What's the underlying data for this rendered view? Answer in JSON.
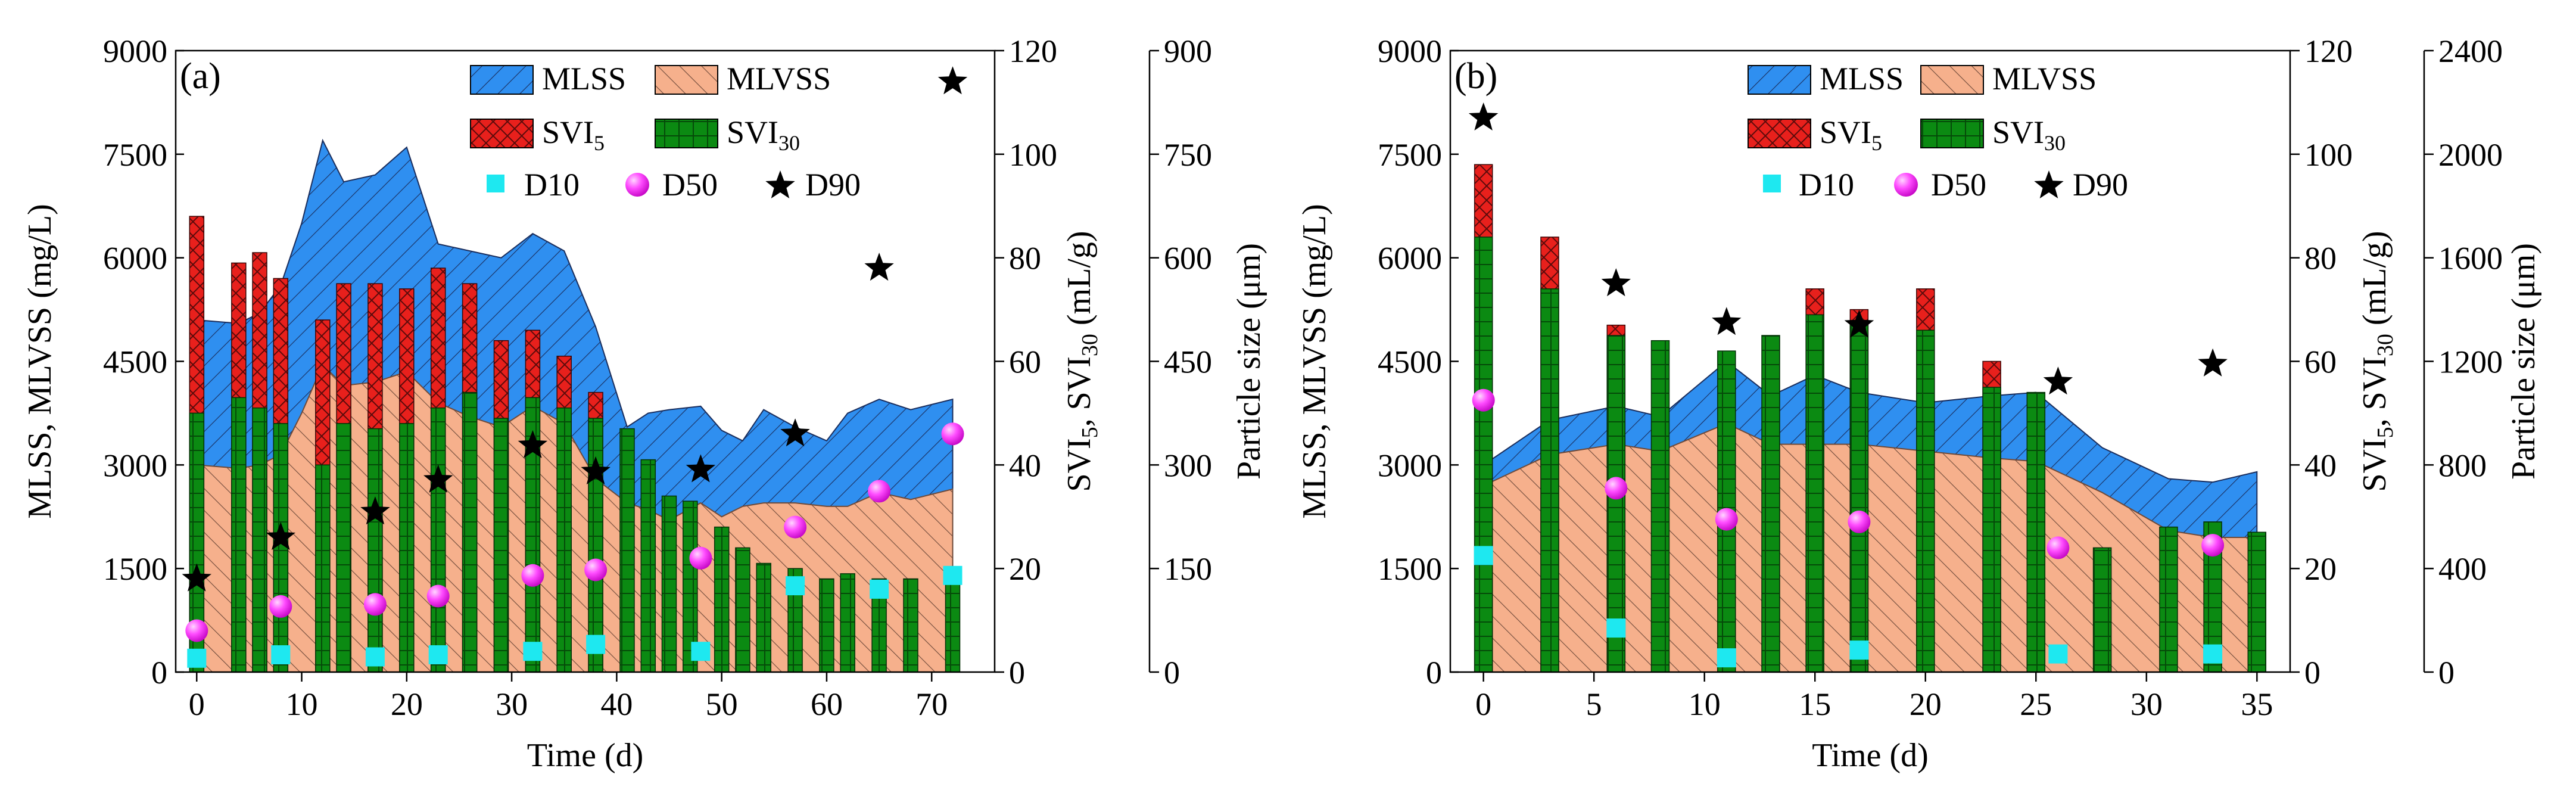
{
  "chart_data": [
    {
      "panel_label": "(a)",
      "type": "bar+area+scatter",
      "xlabel": "Time (d)",
      "x_ticks": [
        "0",
        "10",
        "20",
        "30",
        "40",
        "50",
        "60",
        "70"
      ],
      "xlim": [
        -2,
        76
      ],
      "ylabel_left": "MLSS, MLVSS (mg/L)",
      "ylim_left": [
        0,
        9000
      ],
      "y_ticks_left": [
        "0",
        "1500",
        "3000",
        "4500",
        "6000",
        "7500",
        "9000"
      ],
      "ylabel_right1": "SVI5, SVI30 (mL/g)",
      "ylim_right1": [
        0,
        120
      ],
      "y_ticks_right1": [
        "0",
        "20",
        "40",
        "60",
        "80",
        "100",
        "120"
      ],
      "ylabel_right2": "Particle size (μm)",
      "ylim_right2": [
        0,
        900
      ],
      "y_ticks_right2": [
        "0",
        "150",
        "300",
        "450",
        "600",
        "750",
        "900"
      ],
      "legend": {
        "mlss": "MLSS",
        "mlvss": "MLVSS",
        "svi5": "SVI",
        "svi5_sub": "5",
        "svi30": "SVI",
        "svi30_sub": "30",
        "d10": "D10",
        "d50": "D50",
        "d90": "D90"
      },
      "mlss": {
        "x": [
          0,
          4,
          6,
          8,
          10,
          12,
          14,
          17,
          20,
          23,
          26,
          29,
          32,
          35,
          38,
          41,
          43,
          45,
          48,
          50,
          52,
          54,
          57,
          60,
          62,
          65,
          68,
          72
        ],
        "y": [
          5100,
          5050,
          5200,
          5600,
          6500,
          7700,
          7100,
          7200,
          7600,
          6200,
          6100,
          6000,
          6350,
          6100,
          5000,
          3550,
          3750,
          3800,
          3850,
          3500,
          3350,
          3800,
          3550,
          3350,
          3750,
          3950,
          3800,
          3950
        ]
      },
      "mlvss": {
        "x": [
          0,
          4,
          6,
          8,
          10,
          12,
          14,
          17,
          20,
          23,
          26,
          29,
          32,
          35,
          38,
          41,
          43,
          45,
          48,
          50,
          52,
          54,
          57,
          60,
          62,
          65,
          68,
          72
        ],
        "y": [
          3000,
          2950,
          3000,
          3150,
          3750,
          4450,
          4150,
          4200,
          4350,
          3900,
          3700,
          3550,
          3850,
          3600,
          2800,
          2450,
          2350,
          2200,
          2450,
          2250,
          2400,
          2450,
          2450,
          2400,
          2400,
          2600,
          2500,
          2650
        ]
      },
      "svi30": {
        "x": [
          0,
          4,
          6,
          8,
          12,
          14,
          17,
          20,
          23,
          26,
          29,
          32,
          35,
          38,
          41,
          43,
          45,
          47,
          50,
          52,
          54,
          57,
          60,
          62,
          65,
          68,
          72
        ],
        "y": [
          50,
          53,
          51,
          48,
          40,
          48,
          47,
          48,
          51,
          54,
          49,
          53,
          51,
          49,
          47,
          41,
          34,
          33,
          28,
          24,
          21,
          20,
          18,
          19,
          18,
          18,
          19
        ]
      },
      "svi5": {
        "x": [
          0,
          4,
          6,
          8,
          12,
          14,
          17,
          20,
          23,
          26,
          29,
          32,
          35,
          38
        ],
        "y": [
          88,
          79,
          81,
          76,
          68,
          75,
          75,
          74,
          78,
          75,
          64,
          66,
          61,
          54
        ]
      },
      "d10": {
        "x": [
          0,
          8,
          17,
          23,
          32,
          38,
          48,
          57,
          65,
          72
        ],
        "y": [
          20,
          25,
          22,
          25,
          30,
          40,
          30,
          125,
          120,
          140
        ]
      },
      "d50": {
        "x": [
          0,
          8,
          17,
          23,
          32,
          38,
          48,
          57,
          65,
          72
        ],
        "y": [
          60,
          95,
          98,
          110,
          140,
          148,
          165,
          210,
          262,
          345
        ]
      },
      "d90": {
        "x": [
          0,
          8,
          17,
          23,
          32,
          38,
          48,
          57,
          65,
          72
        ],
        "y": [
          135,
          195,
          232,
          278,
          328,
          290,
          293,
          345,
          585,
          855
        ]
      }
    },
    {
      "panel_label": "(b)",
      "type": "bar+area+scatter",
      "xlabel": "Time (d)",
      "x_ticks": [
        "0",
        "5",
        "10",
        "15",
        "20",
        "25",
        "30",
        "35"
      ],
      "xlim": [
        -1.5,
        36.5
      ],
      "ylabel_left": "MLSS, MLVSS (mg/L)",
      "ylim_left": [
        0,
        9000
      ],
      "y_ticks_left": [
        "0",
        "1500",
        "3000",
        "4500",
        "6000",
        "7500",
        "9000"
      ],
      "ylabel_right1": "SVI5, SVI30 (mL/g)",
      "ylim_right1": [
        0,
        120
      ],
      "y_ticks_right1": [
        "0",
        "20",
        "40",
        "60",
        "80",
        "100",
        "120"
      ],
      "ylabel_right2": "Particle size (μm)",
      "ylim_right2": [
        0,
        2400
      ],
      "y_ticks_right2": [
        "0",
        "400",
        "800",
        "1200",
        "1600",
        "2000",
        "2400"
      ],
      "legend": {
        "mlss": "MLSS",
        "mlvss": "MLVSS",
        "svi5": "SVI",
        "svi5_sub": "5",
        "svi30": "SVI",
        "svi30_sub": "30",
        "d10": "D10",
        "d50": "D50",
        "d90": "D90"
      },
      "mlss": {
        "x": [
          0,
          3,
          6,
          8,
          11,
          13,
          15,
          17,
          20,
          23,
          25,
          28,
          31,
          33,
          35
        ],
        "y": [
          3000,
          3650,
          3850,
          3700,
          4500,
          4000,
          4300,
          4050,
          3900,
          4000,
          4050,
          3250,
          2800,
          2750,
          2900
        ]
      },
      "mlvss": {
        "x": [
          0,
          3,
          6,
          8,
          11,
          13,
          15,
          17,
          20,
          23,
          25,
          28,
          31,
          33,
          35
        ],
        "y": [
          2700,
          3150,
          3300,
          3200,
          3600,
          3300,
          3300,
          3300,
          3200,
          3100,
          3050,
          2600,
          2050,
          1950,
          1950
        ]
      },
      "svi30": {
        "x": [
          0,
          3,
          6,
          8,
          11,
          13,
          15,
          17,
          20,
          23,
          25,
          28,
          31,
          33,
          35
        ],
        "y": [
          84,
          74,
          65,
          64,
          62,
          65,
          69,
          67,
          66,
          55,
          54,
          24,
          28,
          29,
          27
        ]
      },
      "svi5": {
        "x": [
          0,
          3,
          6,
          15,
          17,
          20,
          23
        ],
        "y": [
          98,
          84,
          67,
          74,
          70,
          74,
          60
        ]
      },
      "d10": {
        "x": [
          0,
          6,
          11,
          17,
          26,
          33
        ],
        "y": [
          450,
          170,
          55,
          85,
          70,
          70
        ]
      },
      "d50": {
        "x": [
          0,
          6,
          11,
          17,
          26,
          33
        ],
        "y": [
          1050,
          710,
          590,
          580,
          480,
          490
        ]
      },
      "d90": {
        "x": [
          0,
          6,
          11,
          17,
          26,
          33
        ],
        "y": [
          2140,
          1500,
          1350,
          1340,
          1120,
          1190
        ]
      }
    }
  ]
}
